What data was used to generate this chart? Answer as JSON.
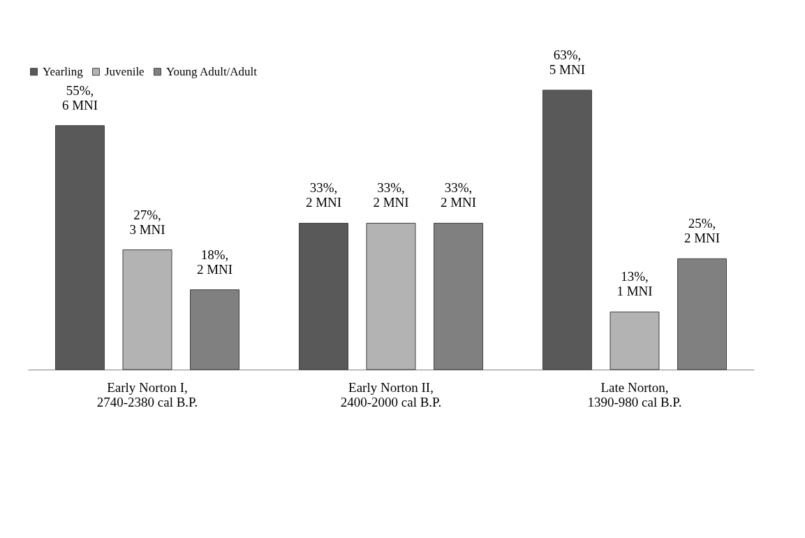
{
  "chart_data": {
    "type": "bar",
    "categories": [
      "Early Norton I,\n2740-2380 cal B.P.",
      "Early Norton II,\n2400-2000 cal B.P.",
      "Late Norton,\n1390-980 cal B.P."
    ],
    "series": [
      {
        "name": "Yearling",
        "color": "#595959",
        "values": [
          55,
          33,
          63
        ],
        "value_labels": [
          "55%,\n6 MNI",
          "33%,\n2 MNI",
          "63%,\n5 MNI"
        ]
      },
      {
        "name": "Juvenile",
        "color": "#b3b3b3",
        "values": [
          27,
          33,
          13
        ],
        "value_labels": [
          "27%,\n3 MNI",
          "33%,\n2 MNI",
          "13%,\n1 MNI"
        ]
      },
      {
        "name": "Young Adult/Adult",
        "color": "#808080",
        "values": [
          18,
          33,
          25
        ],
        "value_labels": [
          "18%,\n2 MNI",
          "33%,\n2 MNI",
          "25%,\n2 MNI"
        ]
      }
    ],
    "legend": "top",
    "grid": false
  }
}
